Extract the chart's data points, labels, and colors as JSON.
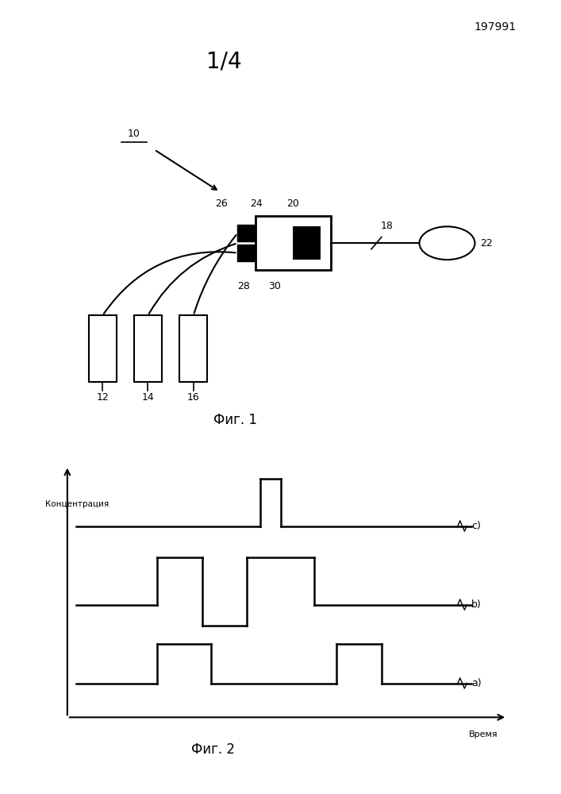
{
  "background_color": "#ffffff",
  "page_number": "197991",
  "fig1_label": "1/4",
  "fig1_caption": "Фиг. 1",
  "fig2_caption": "Фиг. 2",
  "fig2_ylabel": "Концентрация",
  "fig2_xlabel": "Время",
  "series_a_label": "a)",
  "series_b_label": "b)",
  "series_c_label": "c)"
}
